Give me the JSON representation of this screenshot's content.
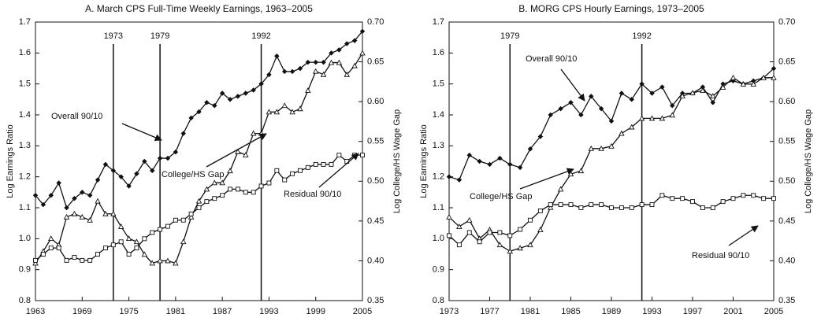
{
  "chart_data": [
    {
      "type": "line",
      "title": "A. March CPS Full-Time Weekly Earnings, 1963–2005",
      "y_label": "Log Earnings Ratio",
      "y2_label": "Log College/HS Wage Gap",
      "x": [
        1963,
        1964,
        1965,
        1966,
        1967,
        1968,
        1969,
        1970,
        1971,
        1972,
        1973,
        1974,
        1975,
        1976,
        1977,
        1978,
        1979,
        1980,
        1981,
        1982,
        1983,
        1984,
        1985,
        1986,
        1987,
        1988,
        1989,
        1990,
        1991,
        1992,
        1993,
        1994,
        1995,
        1996,
        1997,
        1998,
        1999,
        2000,
        2001,
        2002,
        2003,
        2004,
        2005
      ],
      "xlim": [
        1963,
        2005
      ],
      "xticks": [
        1963,
        1969,
        1975,
        1981,
        1987,
        1993,
        1999,
        2005
      ],
      "ylim": [
        0.8,
        1.7
      ],
      "yticks": [
        0.8,
        0.9,
        {
          "value": 1,
          "label": "1.0"
        },
        1.1,
        1.2,
        1.3,
        1.4,
        1.5,
        1.6,
        1.7
      ],
      "y2lim": [
        0.35,
        0.7
      ],
      "y2ticks": [
        0.35,
        {
          "value": 0.4,
          "label": "0.40"
        },
        0.45,
        {
          "value": 0.5,
          "label": "0.50"
        },
        0.55,
        {
          "value": 0.6,
          "label": "0.60"
        },
        0.65,
        {
          "value": 0.7,
          "label": "0.70"
        }
      ],
      "vlines": [
        1973,
        1979,
        1992
      ],
      "series": [
        {
          "name": "Overall 90/10",
          "color": "#111111",
          "marker": "diamond",
          "values": [
            1.14,
            1.11,
            1.14,
            1.18,
            1.1,
            1.13,
            1.15,
            1.14,
            1.19,
            1.24,
            1.22,
            1.2,
            1.17,
            1.21,
            1.25,
            1.22,
            1.26,
            1.26,
            1.28,
            1.34,
            1.39,
            1.41,
            1.44,
            1.43,
            1.47,
            1.45,
            1.46,
            1.47,
            1.48,
            1.5,
            1.53,
            1.59,
            1.54,
            1.54,
            1.55,
            1.57,
            1.57,
            1.57,
            1.6,
            1.61,
            1.63,
            1.64,
            1.67
          ]
        },
        {
          "name": "College/HS Gap",
          "color": "#111111",
          "marker": "triangle",
          "axis": "y2",
          "values": [
            0.397,
            0.412,
            0.428,
            0.42,
            0.455,
            0.459,
            0.455,
            0.451,
            0.475,
            0.459,
            0.459,
            0.443,
            0.428,
            0.424,
            0.408,
            0.397,
            0.4,
            0.4,
            0.397,
            0.424,
            0.455,
            0.475,
            0.49,
            0.498,
            0.498,
            0.513,
            0.537,
            0.533,
            0.56,
            0.56,
            0.587,
            0.587,
            0.595,
            0.587,
            0.591,
            0.614,
            0.638,
            0.634,
            0.649,
            0.649,
            0.634,
            0.645,
            0.661
          ]
        },
        {
          "name": "Residual 90/10",
          "color": "#111111",
          "marker": "square",
          "values": [
            0.93,
            0.95,
            0.97,
            0.97,
            0.93,
            0.94,
            0.93,
            0.93,
            0.95,
            0.97,
            0.98,
            0.99,
            0.95,
            0.97,
            1.0,
            1.02,
            1.03,
            1.04,
            1.06,
            1.06,
            1.08,
            1.1,
            1.12,
            1.13,
            1.14,
            1.16,
            1.16,
            1.15,
            1.15,
            1.17,
            1.18,
            1.22,
            1.19,
            1.21,
            1.22,
            1.23,
            1.24,
            1.24,
            1.24,
            1.27,
            1.25,
            1.27,
            1.27
          ]
        }
      ]
    },
    {
      "type": "line",
      "title": "B. MORG CPS Hourly Earnings, 1973–2005",
      "y_label": "Log Earnings Ratio",
      "y2_label": "Log College/HS Wage Gap",
      "x": [
        1973,
        1974,
        1975,
        1976,
        1977,
        1978,
        1979,
        1980,
        1981,
        1982,
        1983,
        1984,
        1985,
        1986,
        1987,
        1988,
        1989,
        1990,
        1991,
        1992,
        1993,
        1994,
        1995,
        1996,
        1997,
        1998,
        1999,
        2000,
        2001,
        2002,
        2003,
        2004,
        2005
      ],
      "xlim": [
        1973,
        2005
      ],
      "xticks": [
        1973,
        1977,
        1981,
        1985,
        1989,
        1993,
        1997,
        2001,
        2005
      ],
      "ylim": [
        0.8,
        1.7
      ],
      "yticks": [
        0.8,
        0.9,
        {
          "value": 1,
          "label": "1.0"
        },
        1.1,
        1.2,
        1.3,
        1.4,
        1.5,
        1.6,
        1.7
      ],
      "y2lim": [
        0.35,
        0.7
      ],
      "y2ticks": [
        0.35,
        {
          "value": 0.4,
          "label": "0.40"
        },
        0.45,
        {
          "value": 0.5,
          "label": "0.50"
        },
        0.55,
        {
          "value": 0.6,
          "label": "0.60"
        },
        0.65,
        {
          "value": 0.7,
          "label": "0.70"
        }
      ],
      "vlines": [
        1979,
        1992
      ],
      "series": [
        {
          "name": "Overall 90/10",
          "color": "#111111",
          "marker": "diamond",
          "values": [
            1.2,
            1.19,
            1.27,
            1.25,
            1.24,
            1.26,
            1.24,
            1.23,
            1.29,
            1.33,
            1.4,
            1.42,
            1.44,
            1.4,
            1.46,
            1.42,
            1.38,
            1.47,
            1.45,
            1.5,
            1.47,
            1.49,
            1.43,
            1.47,
            1.47,
            1.49,
            1.44,
            1.5,
            1.51,
            1.5,
            1.51,
            1.52,
            1.55
          ]
        },
        {
          "name": "College/HS Gap",
          "color": "#111111",
          "marker": "triangle",
          "axis": "y2",
          "values": [
            0.455,
            0.443,
            0.451,
            0.428,
            0.439,
            0.42,
            0.412,
            0.416,
            0.42,
            0.439,
            0.467,
            0.49,
            0.509,
            0.513,
            0.541,
            0.541,
            0.544,
            0.56,
            0.568,
            0.579,
            0.579,
            0.579,
            0.583,
            0.607,
            0.611,
            0.614,
            0.607,
            0.618,
            0.63,
            0.622,
            0.622,
            0.63,
            0.63
          ]
        },
        {
          "name": "Residual 90/10",
          "color": "#111111",
          "marker": "square",
          "values": [
            1.01,
            0.98,
            1.02,
            0.99,
            1.02,
            1.02,
            1.01,
            1.03,
            1.06,
            1.09,
            1.11,
            1.11,
            1.11,
            1.1,
            1.11,
            1.11,
            1.1,
            1.1,
            1.1,
            1.11,
            1.11,
            1.14,
            1.13,
            1.13,
            1.12,
            1.1,
            1.1,
            1.12,
            1.13,
            1.14,
            1.14,
            1.13,
            1.13
          ]
        }
      ]
    }
  ]
}
